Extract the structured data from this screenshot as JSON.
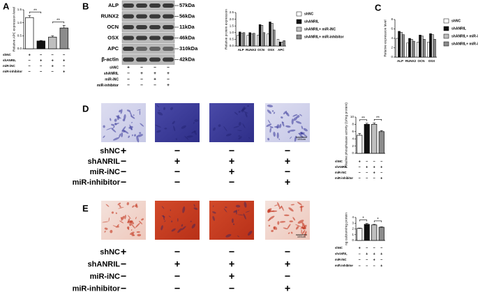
{
  "panel_labels": [
    "A",
    "B",
    "C",
    "D",
    "E"
  ],
  "blot": {
    "proteins": [
      "ALP",
      "RUNX2",
      "OCN",
      "OSX",
      "APC",
      "β-actin"
    ],
    "sizes": [
      "57kDa",
      "56kDa",
      "11kDa",
      "46kDa",
      "310kDa",
      "42kDa"
    ],
    "treatments": [
      {
        "label": "shNC",
        "signs": [
          "+",
          "−",
          "−",
          "−"
        ]
      },
      {
        "label": "shANRIL",
        "signs": [
          "−",
          "+",
          "+",
          "+"
        ]
      },
      {
        "label": "miR-iNC",
        "signs": [
          "−",
          "−",
          "+",
          "−"
        ]
      },
      {
        "label": "miR-inhibitor",
        "signs": [
          "−",
          "−",
          "−",
          "+"
        ]
      }
    ]
  },
  "staining": [
    {
      "scale": "100um",
      "treatments": [
        {
          "label": "shNC",
          "signs": [
            "+",
            "−",
            "−",
            "−"
          ]
        },
        {
          "label": "shANRIL",
          "signs": [
            "−",
            "+",
            "+",
            "+"
          ]
        },
        {
          "label": "miR-iNC",
          "signs": [
            "−",
            "−",
            "+",
            "−"
          ]
        },
        {
          "label": "miR-inhibitor",
          "signs": [
            "−",
            "−",
            "−",
            "+"
          ]
        }
      ]
    },
    {
      "scale": "100um",
      "treatments": [
        {
          "label": "shNC",
          "signs": [
            "+",
            "−",
            "−",
            "−"
          ]
        },
        {
          "label": "shANRIL",
          "signs": [
            "−",
            "+",
            "+",
            "+"
          ]
        },
        {
          "label": "miR-iNC",
          "signs": [
            "−",
            "−",
            "+",
            "−"
          ]
        },
        {
          "label": "miR-inhibitor",
          "signs": [
            "−",
            "−",
            "−",
            "+"
          ]
        }
      ]
    }
  ],
  "chart_data": [
    {
      "type": "bar",
      "y_label": "Relative APC expression level",
      "values": [
        1.2,
        0.3,
        0.45,
        0.8
      ],
      "errors": [
        0.08,
        0.02,
        0.05,
        0.1
      ],
      "colors": [
        "#ffffff",
        "#111111",
        "#bfbfbf",
        "#8c8c8c"
      ],
      "ylim": [
        0,
        1.5
      ],
      "yticks": [
        {
          "value": 0,
          "label": "0.0"
        },
        {
          "value": 0.5,
          "label": "0.5"
        },
        {
          "value": 1,
          "label": "1.0"
        },
        {
          "value": 1.5,
          "label": "1.5"
        }
      ],
      "annotations": [
        "**",
        "**"
      ],
      "treatments": [
        {
          "label": "shNC",
          "signs": [
            "+",
            "−",
            "−",
            "−"
          ]
        },
        {
          "label": "shANRIL",
          "signs": [
            "−",
            "+",
            "+",
            "+"
          ]
        },
        {
          "label": "miR-iNC",
          "signs": [
            "−",
            "−",
            "+",
            "−"
          ]
        },
        {
          "label": "miR-inhibitor",
          "signs": [
            "−",
            "−",
            "−",
            "+"
          ]
        }
      ]
    },
    {
      "type": "grouped-bar",
      "y_label": "Relative protein expression",
      "categories": [
        "ALP",
        "RUNX2",
        "OCN",
        "OSX",
        "APC"
      ],
      "series": [
        {
          "name": "shNC",
          "color": "#ffffff",
          "values": [
            0.8,
            0.8,
            0.8,
            0.9,
            0.5
          ]
        },
        {
          "name": "shANRIL",
          "color": "#111111",
          "values": [
            1.05,
            1.0,
            1.6,
            1.8,
            0.3
          ]
        },
        {
          "name": "shANRIL+ miR-iNC",
          "color": "#bfbfbf",
          "values": [
            0.95,
            0.9,
            1.55,
            1.7,
            0.3
          ]
        },
        {
          "name": "shANRIL+ miR-inhibitor",
          "color": "#8c8c8c",
          "values": [
            1.0,
            0.95,
            1.0,
            1.2,
            0.4
          ]
        }
      ],
      "ylim": [
        0,
        2.5
      ],
      "yticks": [
        {
          "value": 0,
          "label": "0.0"
        },
        {
          "value": 0.5,
          "label": "0.5"
        },
        {
          "value": 1,
          "label": "1.0"
        },
        {
          "value": 1.5,
          "label": "1.5"
        },
        {
          "value": 2,
          "label": "2.0"
        },
        {
          "value": 2.5,
          "label": "2.5"
        }
      ]
    },
    {
      "type": "grouped-bar",
      "y_label": "Relative expression level",
      "categories": [
        "ALP",
        "RUNX2",
        "OCN",
        "OSX"
      ],
      "series": [
        {
          "name": "shNC",
          "color": "#ffffff",
          "values": [
            4,
            3,
            3.2,
            3.2
          ]
        },
        {
          "name": "shANRIL",
          "color": "#111111",
          "values": [
            5.5,
            4,
            4.7,
            5
          ]
        },
        {
          "name": "shANRIL+ miR-iNC",
          "color": "#bfbfbf",
          "values": [
            5.3,
            3.8,
            4.5,
            4.8
          ]
        },
        {
          "name": "shANRIL+ miR-inhibitor",
          "color": "#8c8c8c",
          "values": [
            4.8,
            3.4,
            3.8,
            3.8
          ]
        }
      ],
      "ylim": [
        0,
        8
      ],
      "yticks": [
        0,
        2,
        4,
        6,
        8
      ]
    },
    {
      "type": "bar",
      "y_label": "Alkaline phosphatase activity (U/mg protein)",
      "values": [
        5,
        8,
        8,
        6
      ],
      "errors": [
        0.5,
        0.3,
        0.4,
        0.3
      ],
      "colors": [
        "#ffffff",
        "#111111",
        "#bfbfbf",
        "#8c8c8c"
      ],
      "ylim": [
        0,
        10
      ],
      "yticks": [
        0,
        2,
        4,
        6,
        8,
        10
      ],
      "annotations": [
        "**",
        "**"
      ],
      "treatments": [
        {
          "label": "shNC",
          "signs": [
            "+",
            "−",
            "−",
            "−"
          ]
        },
        {
          "label": "shANRIL",
          "signs": [
            "−",
            "+",
            "+",
            "+"
          ]
        },
        {
          "label": "miR-iNC",
          "signs": [
            "−",
            "−",
            "+",
            "−"
          ]
        },
        {
          "label": "miR-inhibitor",
          "signs": [
            "−",
            "−",
            "−",
            "+"
          ]
        }
      ]
    },
    {
      "type": "bar",
      "y_label": "ng calcium/mg protein",
      "values": [
        2.1,
        2.8,
        2.7,
        2.3
      ],
      "errors": [
        0.05,
        0.15,
        0.1,
        0.07
      ],
      "colors": [
        "#ffffff",
        "#111111",
        "#bfbfbf",
        "#8c8c8c"
      ],
      "ylim": [
        0,
        4
      ],
      "yticks": [
        0,
        1,
        2,
        3,
        4
      ],
      "annotations": [
        "*",
        "*"
      ],
      "treatments": [
        {
          "label": "shNC",
          "signs": [
            "+",
            "−",
            "−",
            "−"
          ]
        },
        {
          "label": "shANRIL",
          "signs": [
            "−",
            "+",
            "+",
            "+"
          ]
        },
        {
          "label": "miR-iNC",
          "signs": [
            "−",
            "−",
            "+",
            "−"
          ]
        },
        {
          "label": "miR-inhibitor",
          "signs": [
            "−",
            "−",
            "−",
            "+"
          ]
        }
      ]
    }
  ]
}
